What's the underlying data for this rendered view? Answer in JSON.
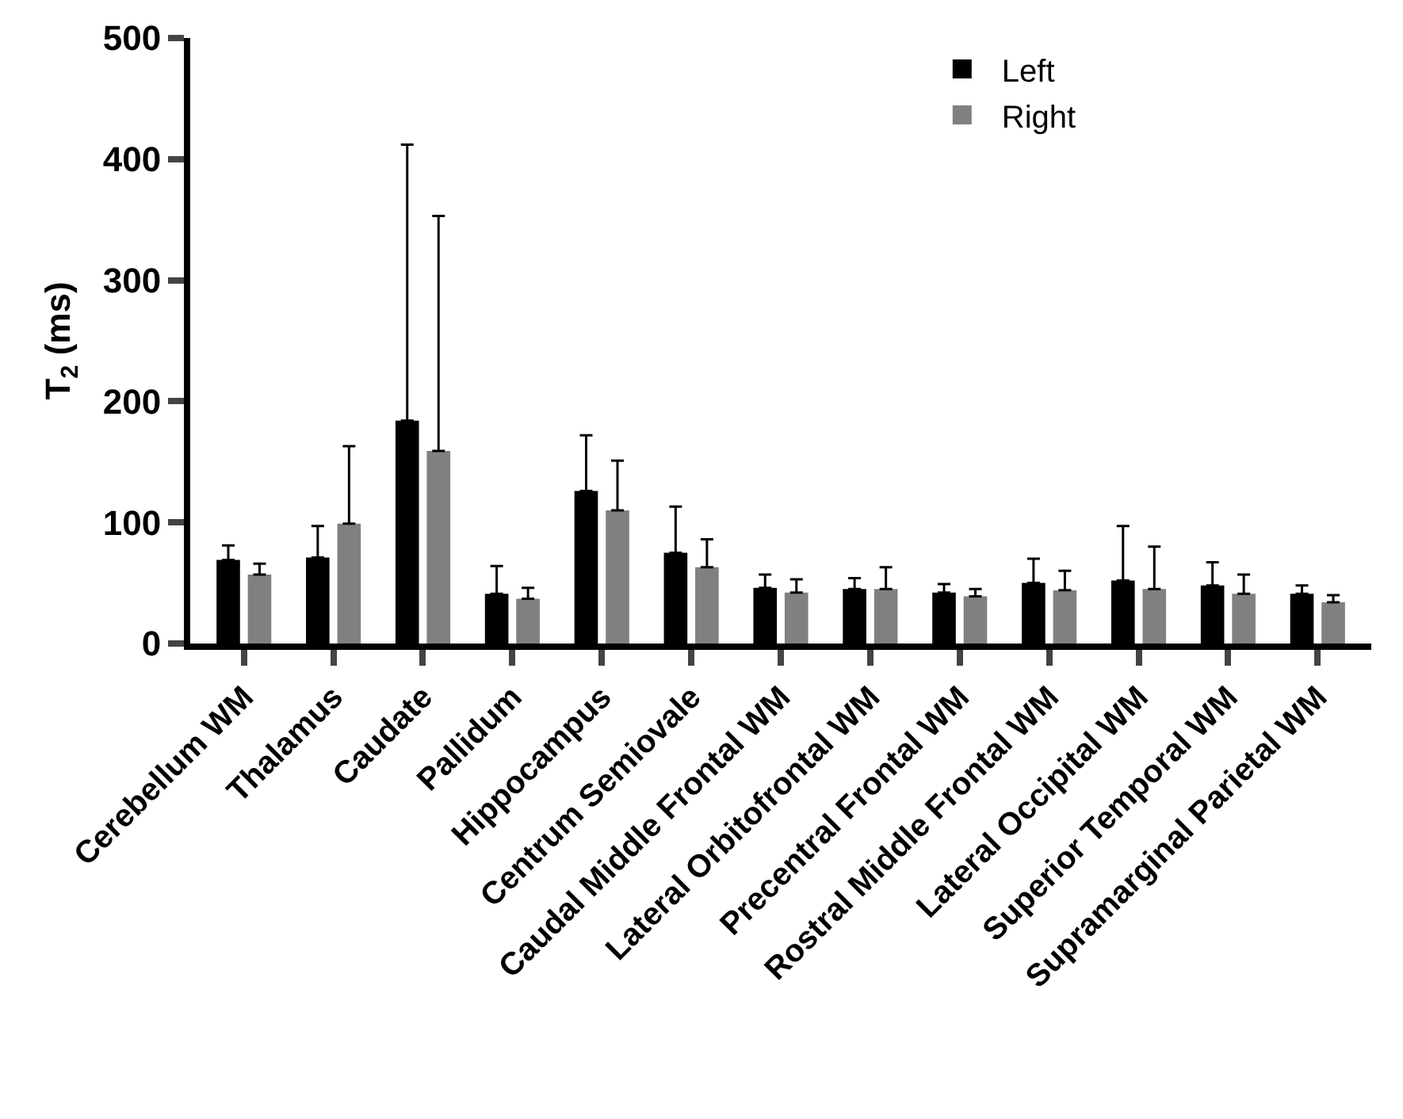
{
  "chart_data": {
    "type": "bar",
    "ylabel": "T$_{2}$ (ms)",
    "categories": [
      "Cerebellum WM",
      "Thalamus",
      "Caudate",
      "Pallidum",
      "Hippocampus",
      "Centrum Semiovale",
      "Caudal Middle Frontal WM",
      "Lateral Orbitofrontal WM",
      "Precentral Frontal WM",
      "Rostral Middle Frontal WM",
      "Lateral Occipital WM",
      "Superior Temporal WM",
      "Supramarginal Parietal WM"
    ],
    "series": [
      {
        "name": "Left",
        "color": "#000000",
        "values": [
          69,
          71,
          184,
          41,
          126,
          75,
          46,
          45,
          42,
          50,
          52,
          48,
          41
        ],
        "errors": [
          [
            69,
            81
          ],
          [
            71,
            97
          ],
          [
            184,
            412
          ],
          [
            41,
            64
          ],
          [
            126,
            172
          ],
          [
            75,
            113
          ],
          [
            46,
            57
          ],
          [
            45,
            54
          ],
          [
            42,
            49
          ],
          [
            50,
            70
          ],
          [
            52,
            97
          ],
          [
            48,
            67
          ],
          [
            41,
            48
          ]
        ]
      },
      {
        "name": "Right",
        "color": "#808080",
        "values": [
          57,
          99,
          159,
          37,
          110,
          63,
          42,
          45,
          39,
          44,
          45,
          41,
          34
        ],
        "errors": [
          [
            57,
            66
          ],
          [
            99,
            163
          ],
          [
            159,
            353
          ],
          [
            37,
            46
          ],
          [
            110,
            151
          ],
          [
            63,
            86
          ],
          [
            42,
            53
          ],
          [
            45,
            63
          ],
          [
            39,
            45
          ],
          [
            44,
            60
          ],
          [
            45,
            80
          ],
          [
            41,
            57
          ],
          [
            34,
            40
          ]
        ]
      }
    ],
    "ylim": [
      0,
      500
    ],
    "yticks": [
      0,
      100,
      200,
      300,
      400,
      500
    ],
    "legend": "top right"
  }
}
